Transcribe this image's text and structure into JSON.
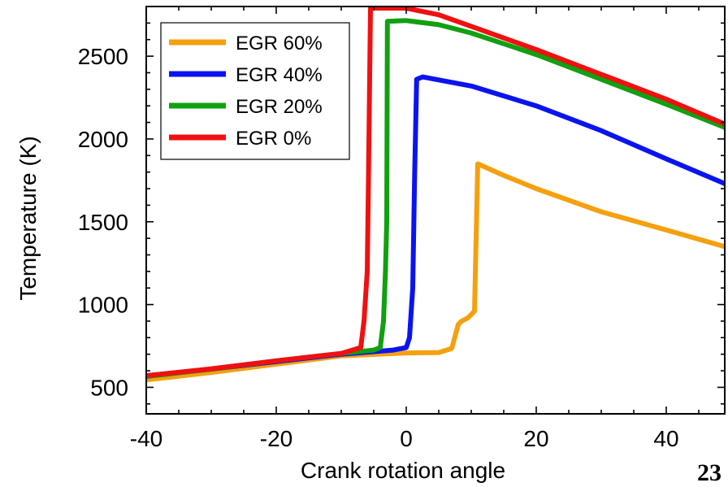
{
  "page_number": "23",
  "chart_data": {
    "type": "line",
    "title": "",
    "xlabel": "Crank rotation angle",
    "ylabel": "Temperature  (K)",
    "xlim": [
      -40,
      49
    ],
    "ylim": [
      340,
      2800
    ],
    "x_ticks": [
      -40,
      -20,
      0,
      20,
      40
    ],
    "x_tick_labels": [
      "-40",
      "-20",
      "0",
      "20",
      "40"
    ],
    "y_ticks": [
      500,
      1000,
      1500,
      2000,
      2500
    ],
    "y_tick_labels": [
      "500",
      "1000",
      "1500",
      "2000",
      "2500"
    ],
    "grid": false,
    "legend_position": "top-left",
    "series": [
      {
        "name": "EGR 60%",
        "color": "#f5a00f",
        "points": [
          [
            -40,
            545
          ],
          [
            -30,
            590
          ],
          [
            -20,
            640
          ],
          [
            -10,
            690
          ],
          [
            0,
            708
          ],
          [
            5,
            710
          ],
          [
            7,
            735
          ],
          [
            8,
            880
          ],
          [
            8.5,
            900
          ],
          [
            9.5,
            920
          ],
          [
            10.5,
            960
          ],
          [
            11,
            1850
          ],
          [
            15,
            1780
          ],
          [
            20,
            1700
          ],
          [
            30,
            1560
          ],
          [
            40,
            1450
          ],
          [
            49,
            1350
          ]
        ]
      },
      {
        "name": "EGR 40%",
        "color": "#0a14f0",
        "points": [
          [
            -40,
            570
          ],
          [
            -30,
            610
          ],
          [
            -20,
            655
          ],
          [
            -10,
            700
          ],
          [
            -2,
            725
          ],
          [
            0,
            740
          ],
          [
            0.5,
            800
          ],
          [
            1,
            1100
          ],
          [
            1.3,
            1800
          ],
          [
            1.6,
            2360
          ],
          [
            2.5,
            2375
          ],
          [
            10,
            2320
          ],
          [
            20,
            2200
          ],
          [
            30,
            2050
          ],
          [
            40,
            1880
          ],
          [
            49,
            1730
          ]
        ]
      },
      {
        "name": "EGR 20%",
        "color": "#10a010",
        "points": [
          [
            -40,
            565
          ],
          [
            -30,
            610
          ],
          [
            -20,
            660
          ],
          [
            -10,
            705
          ],
          [
            -5,
            725
          ],
          [
            -4,
            740
          ],
          [
            -3.5,
            900
          ],
          [
            -3.2,
            1200
          ],
          [
            -3,
            1500
          ],
          [
            -2.9,
            2710
          ],
          [
            0,
            2715
          ],
          [
            5,
            2690
          ],
          [
            10,
            2640
          ],
          [
            20,
            2510
          ],
          [
            30,
            2360
          ],
          [
            40,
            2210
          ],
          [
            49,
            2070
          ]
        ]
      },
      {
        "name": "EGR 0%",
        "color": "#f01010",
        "points": [
          [
            -40,
            570
          ],
          [
            -30,
            612
          ],
          [
            -20,
            660
          ],
          [
            -10,
            705
          ],
          [
            -7,
            740
          ],
          [
            -6.5,
            900
          ],
          [
            -6,
            1200
          ],
          [
            -5.8,
            1800
          ],
          [
            -5.5,
            2790
          ],
          [
            0,
            2790
          ],
          [
            5,
            2750
          ],
          [
            10,
            2680
          ],
          [
            20,
            2540
          ],
          [
            30,
            2390
          ],
          [
            40,
            2240
          ],
          [
            49,
            2090
          ]
        ]
      }
    ]
  }
}
